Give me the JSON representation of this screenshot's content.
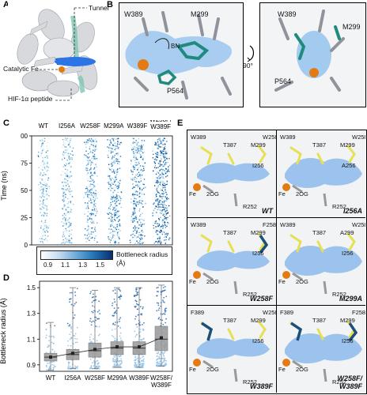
{
  "panels": {
    "A": {
      "letter": "A",
      "tunnel": "Tunnel",
      "catalytic": "Catalytic Fe",
      "hif": "HIF-1α peptide"
    },
    "B": {
      "letter": "B",
      "left": {
        "w389": "W389",
        "m299": "M299",
        "bn": "BN",
        "p564": "P564"
      },
      "rotate": "90°",
      "right": {
        "w389": "W389",
        "m299": "M299",
        "p564": "P564"
      }
    },
    "C": {
      "letter": "C",
      "ylabel": "Time (ns)",
      "yticks": [
        "100",
        "75",
        "50",
        "25",
        "0"
      ],
      "variants": [
        "WT",
        "I256A",
        "W258F",
        "M299A",
        "W389F",
        "W258F/\nW389F"
      ],
      "colorbar_ticks": [
        "0.9",
        "1.1",
        "1.3",
        "1.5"
      ],
      "colorbar_label": "Bottleneck radius (Å)",
      "colors": {
        "low": "#ffffff",
        "mid": "#6aa9d8",
        "high": "#08306b"
      }
    },
    "D": {
      "letter": "D",
      "ylabel": "Bottleneck radius (Å)",
      "yticks": [
        "1.5",
        "1.3",
        "1.1",
        "0.9"
      ],
      "xlabels": [
        "WT",
        "I256A",
        "W258F",
        "M299A",
        "W389F",
        "W258F/\nW389F"
      ]
    },
    "E": {
      "letter": "E",
      "tiles": [
        {
          "name": "WT",
          "labels": [
            "W389",
            "T387",
            "M299",
            "W258",
            "I256",
            "Fe",
            "2OG",
            "R252"
          ]
        },
        {
          "name": "I256A",
          "labels": [
            "W389",
            "T387",
            "M299",
            "W258",
            "A256",
            "Fe",
            "2OG",
            "R252"
          ]
        },
        {
          "name": "W258F",
          "labels": [
            "W389",
            "T387",
            "M299",
            "F258",
            "I256",
            "Fe",
            "2OG",
            "R252"
          ]
        },
        {
          "name": "M299A",
          "labels": [
            "W389",
            "T387",
            "A299",
            "W258",
            "I256",
            "Fe",
            "2OG",
            "R252"
          ]
        },
        {
          "name": "W389F",
          "labels": [
            "F389",
            "T387",
            "M299",
            "W258",
            "I256",
            "Fe",
            "2OG",
            "R252"
          ]
        },
        {
          "name": "W258F/\nW389F",
          "labels": [
            "F389",
            "T387",
            "M299",
            "F258",
            "I256",
            "Fe",
            "2OG",
            "R252"
          ]
        }
      ]
    }
  },
  "chart_data": [
    {
      "type": "scatter",
      "panel": "C",
      "description_axis": "Time (ns) vs variant; points colored by bottleneck radius",
      "ylabel": "Time (ns)",
      "ylim": [
        0,
        100
      ],
      "categories": [
        "WT",
        "I256A",
        "W258F",
        "M299A",
        "W389F",
        "W258F/W389F"
      ],
      "colorbar": {
        "label": "Bottleneck radius (Å)",
        "ticks": [
          0.9,
          1.1,
          1.3,
          1.5
        ]
      }
    },
    {
      "type": "box",
      "panel": "D",
      "ylabel": "Bottleneck radius (Å)",
      "ylim": [
        0.85,
        1.55
      ],
      "yticks": [
        0.9,
        1.1,
        1.3,
        1.5
      ],
      "categories": [
        "WT",
        "I256A",
        "W258F",
        "M299A",
        "W389F",
        "W258F/W389F"
      ],
      "medians": [
        0.96,
        0.98,
        1.01,
        1.03,
        1.03,
        1.1
      ],
      "means": [
        0.96,
        0.99,
        1.02,
        1.04,
        1.04,
        1.11
      ],
      "q1": [
        0.93,
        0.94,
        0.96,
        0.98,
        0.98,
        1.01
      ],
      "q3": [
        0.99,
        1.02,
        1.07,
        1.08,
        1.08,
        1.2
      ],
      "whisker_low": [
        0.86,
        0.87,
        0.87,
        0.88,
        0.88,
        0.89
      ],
      "whisker_high": [
        1.23,
        1.5,
        1.48,
        1.5,
        1.5,
        1.52
      ]
    }
  ]
}
